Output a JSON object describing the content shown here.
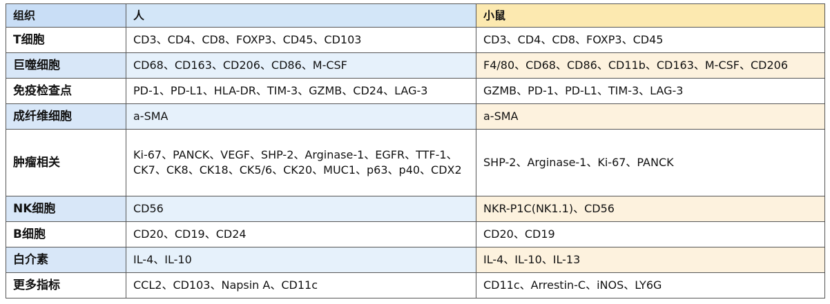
{
  "table": {
    "header": [
      "组织",
      "人",
      "小鼠"
    ],
    "rows": [
      [
        "T细胞",
        "CD3、CD4、CD8、FOXP3、CD45、CD103",
        "CD3、CD4、CD8、FOXP3、CD45"
      ],
      [
        "巨噬细胞",
        "CD68、CD163、CD206、CD86、M-CSF",
        "F4/80、CD68、CD86、CD11b、CD163、M-CSF、CD206"
      ],
      [
        "免疫检查点",
        "PD-1、PD-L1、HLA-DR、TIM-3、GZMB、CD24、LAG-3",
        "GZMB、PD-1、PD-L1、TIM-3、LAG-3"
      ],
      [
        "成纤维细胞",
        "a-SMA",
        "a-SMA"
      ],
      [
        "肿瘤相关",
        "Ki-67、PANCK、VEGF、SHP-2、Arginase-1、EGFR、TTF-1、CK7、CK8、CK18、CK5/6、CK20、MUC1、p63、p40、CDX2",
        "SHP-2、Arginase-1、Ki-67、PANCK"
      ],
      [
        "NK细胞",
        "CD56",
        "NKR-P1C(NK1.1)、CD56"
      ],
      [
        "B细胞",
        "CD20、CD19、CD24",
        "CD20、CD19"
      ],
      [
        "白介素",
        "IL-4、IL-10",
        "IL-4、IL-10、IL-13"
      ],
      [
        "更多指标",
        "CCL2、CD103、Napsin A、CD11c",
        "CD11c、Arrestin-C、iNOS、LY6G"
      ]
    ]
  }
}
